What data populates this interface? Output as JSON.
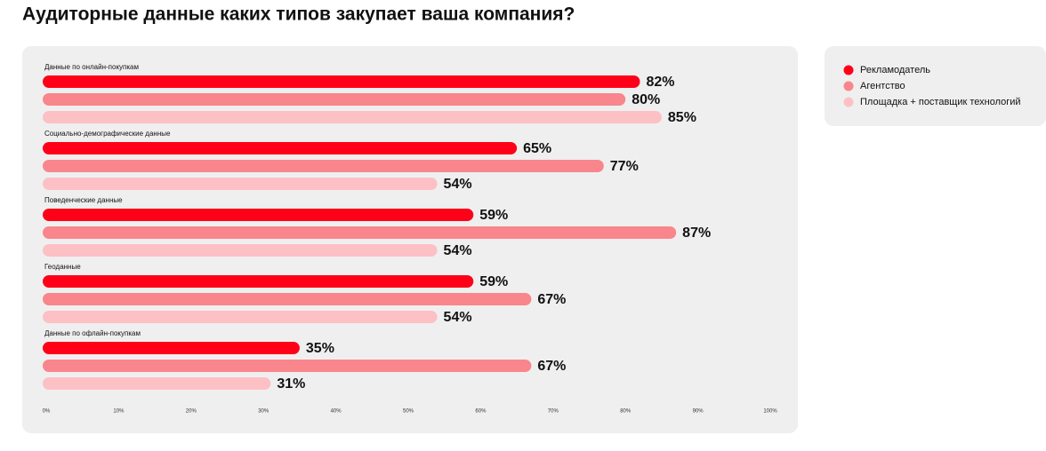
{
  "chart_data": {
    "type": "hbar",
    "title": "Аудиторные данные каких типов закупает ваша компания?",
    "categories": [
      "Данные по онлайн-покупкам",
      "Социально-демографические данные",
      "Поведенческие данные",
      "Геоданные",
      "Данные по офлайн-покупкам"
    ],
    "series": [
      {
        "name": "Рекламодатель",
        "color": "#ff0019",
        "values": [
          82,
          65,
          59,
          59,
          35
        ],
        "value_labels": [
          "82%",
          "65%",
          "59%",
          "59%",
          "35%"
        ]
      },
      {
        "name": "Агентство",
        "color": "#f8868c",
        "values": [
          80,
          77,
          87,
          67,
          67
        ],
        "value_labels": [
          "80%",
          "77%",
          "87%",
          "67%",
          "67%"
        ]
      },
      {
        "name": "Площадка + поставщик технологий",
        "color": "#fdc0c5",
        "values": [
          85,
          54,
          54,
          54,
          31
        ],
        "value_labels": [
          "85%",
          "54%",
          "54%",
          "54%",
          "31%"
        ]
      }
    ],
    "xlim": [
      0,
      100
    ],
    "xticks": [
      {
        "value": 0,
        "label": "0%"
      },
      {
        "value": 10,
        "label": "10%"
      },
      {
        "value": 20,
        "label": "20%"
      },
      {
        "value": 30,
        "label": "30%"
      },
      {
        "value": 40,
        "label": "40%"
      },
      {
        "value": 50,
        "label": "50%"
      },
      {
        "value": 60,
        "label": "60%"
      },
      {
        "value": 70,
        "label": "70%"
      },
      {
        "value": 80,
        "label": "80%"
      },
      {
        "value": 90,
        "label": "90%"
      },
      {
        "value": 100,
        "label": "100%"
      }
    ],
    "legend": "right"
  }
}
